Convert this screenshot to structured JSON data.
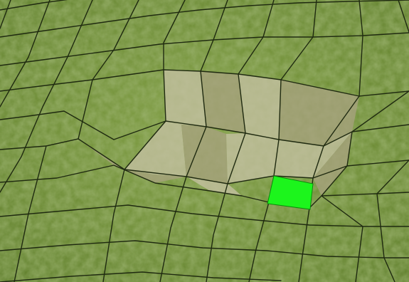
{
  "scene": {
    "view": "terrain-editor-viewport",
    "projection": "perspective",
    "terrain": {
      "texture": "grass",
      "grid": "shown",
      "deformation": "depression",
      "colors": {
        "grass_base": "#6f8f34",
        "grass_light": "#8aa848",
        "grass_dark": "#4f6e22",
        "slope": "#a8a180",
        "slope_light": "#c7c2a6",
        "grid_line": "#1f2a10"
      }
    },
    "selection": {
      "shape": "tile",
      "color": "#1cf51c"
    },
    "hud_text": []
  }
}
